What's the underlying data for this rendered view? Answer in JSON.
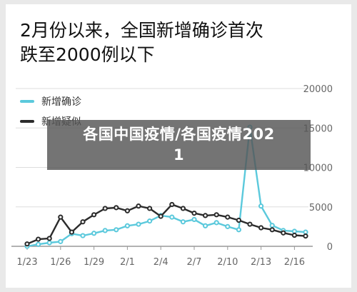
{
  "headline": {
    "line1": "2月份以来，全国新增确诊首次",
    "line2": "跌至2000例以下"
  },
  "overlay": {
    "line1": "各国中国疫情/各国疫情202",
    "line2": "1"
  },
  "colors": {
    "confirmed": "#5bc9dc",
    "suspected": "#2b2b2b",
    "grid": "#dddddd",
    "axis": "#999999",
    "text": "#666666"
  },
  "chart_data": {
    "type": "line",
    "x_tick_labels": [
      "1/23",
      "1/26",
      "1/29",
      "2/1",
      "2/4",
      "2/7",
      "2/10",
      "2/13",
      "2/16"
    ],
    "y_ticks": [
      0,
      5000,
      10000,
      15000,
      20000
    ],
    "y_tick_labels": [
      "0",
      "5000",
      "10000",
      "15000",
      "20000"
    ],
    "ylim": [
      0,
      20000
    ],
    "grid": true,
    "legend_position": "top-left",
    "series": [
      {
        "name": "新增确诊",
        "color": "#5bc9dc",
        "values": [
          0,
          250,
          450,
          600,
          1600,
          1350,
          1650,
          2000,
          2100,
          2600,
          2800,
          3200,
          3900,
          3700,
          3100,
          3400,
          2600,
          3000,
          2500,
          2100,
          15100,
          5100,
          2650,
          2000,
          1900,
          1800
        ]
      },
      {
        "name": "新增疑似",
        "color": "#2b2b2b",
        "values": [
          300,
          900,
          1000,
          3700,
          1800,
          3100,
          4000,
          4800,
          4900,
          4500,
          5100,
          4800,
          3800,
          5300,
          4800,
          4200,
          3900,
          4000,
          3700,
          3300,
          2800,
          2350,
          2100,
          1700,
          1400,
          1300
        ]
      }
    ]
  }
}
